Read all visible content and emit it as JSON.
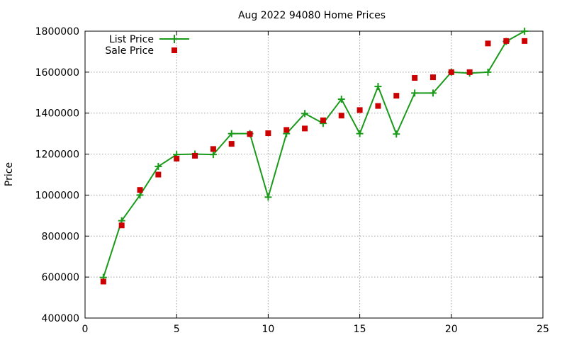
{
  "chart_data": {
    "type": "line",
    "title": "Aug 2022 94080 Home Prices",
    "xlabel": "",
    "ylabel": "Price",
    "xlim": [
      0,
      25
    ],
    "ylim": [
      400000,
      1800000
    ],
    "x_ticks": [
      "0",
      "5",
      "10",
      "15",
      "20",
      "25"
    ],
    "y_ticks": [
      "400000",
      "600000",
      "800000",
      "1000000",
      "1200000",
      "1400000",
      "1600000",
      "1800000"
    ],
    "grid": true,
    "legend_position": "top-left",
    "x": [
      1,
      2,
      3,
      4,
      5,
      6,
      7,
      8,
      9,
      10,
      11,
      12,
      13,
      14,
      15,
      16,
      17,
      18,
      19,
      20,
      21,
      22,
      23,
      24
    ],
    "series": [
      {
        "name": "List Price",
        "style": "line-plus",
        "color": "#1a9a1a",
        "values": [
          598000,
          875000,
          1000000,
          1140000,
          1198000,
          1200000,
          1198000,
          1300000,
          1300000,
          990000,
          1300000,
          1398000,
          1350000,
          1468000,
          1300000,
          1530000,
          1298000,
          1498000,
          1498000,
          1600000,
          1595000,
          1600000,
          1750000,
          1800000
        ]
      },
      {
        "name": "Sale Price",
        "style": "square-points",
        "color": "#cc0000",
        "values": [
          578000,
          852000,
          1025000,
          1100000,
          1178000,
          1192000,
          1225000,
          1250000,
          1298000,
          1302000,
          1318000,
          1325000,
          1365000,
          1388000,
          1415000,
          1435000,
          1485000,
          1572000,
          1575000,
          1600000,
          1600000,
          1740000,
          1752000,
          1752000
        ]
      }
    ]
  }
}
